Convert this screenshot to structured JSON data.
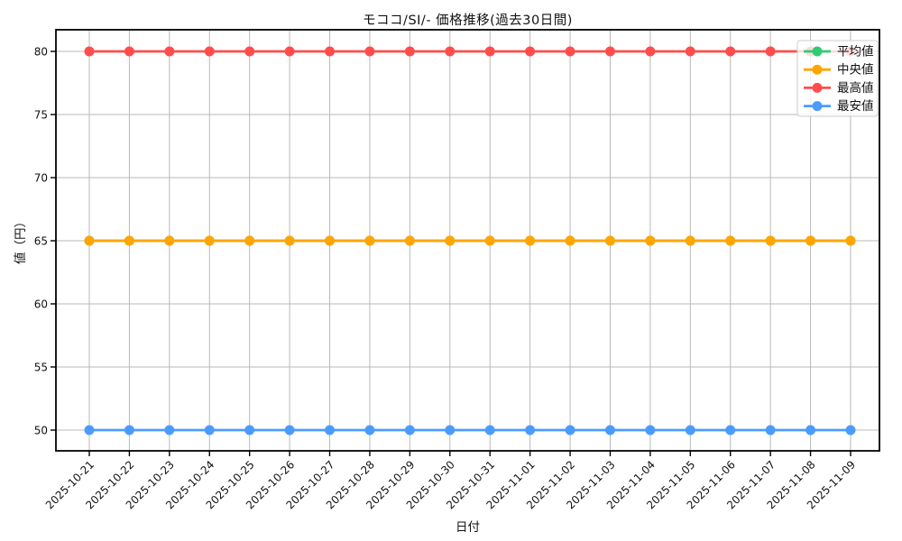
{
  "chart_data": {
    "type": "line",
    "title": "モココ/SI/- 価格推移(過去30日間)",
    "xlabel": "日付",
    "ylabel": "値（円）",
    "categories": [
      "2025-10-21",
      "2025-10-22",
      "2025-10-23",
      "2025-10-24",
      "2025-10-25",
      "2025-10-26",
      "2025-10-27",
      "2025-10-28",
      "2025-10-29",
      "2025-10-30",
      "2025-10-31",
      "2025-11-01",
      "2025-11-02",
      "2025-11-03",
      "2025-11-04",
      "2025-11-05",
      "2025-11-06",
      "2025-11-07",
      "2025-11-08",
      "2025-11-09"
    ],
    "series": [
      {
        "name": "平均値",
        "color": "#2ecc71",
        "values": [
          65,
          65,
          65,
          65,
          65,
          65,
          65,
          65,
          65,
          65,
          65,
          65,
          65,
          65,
          65,
          65,
          65,
          65,
          65,
          65
        ]
      },
      {
        "name": "中央値",
        "color": "#ffa502",
        "values": [
          65,
          65,
          65,
          65,
          65,
          65,
          65,
          65,
          65,
          65,
          65,
          65,
          65,
          65,
          65,
          65,
          65,
          65,
          65,
          65
        ]
      },
      {
        "name": "最高値",
        "color": "#ff4d4d",
        "values": [
          80,
          80,
          80,
          80,
          80,
          80,
          80,
          80,
          80,
          80,
          80,
          80,
          80,
          80,
          80,
          80,
          80,
          80,
          80,
          80
        ]
      },
      {
        "name": "最安値",
        "color": "#4b9bff",
        "values": [
          50,
          50,
          50,
          50,
          50,
          50,
          50,
          50,
          50,
          50,
          50,
          50,
          50,
          50,
          50,
          50,
          50,
          50,
          50,
          50
        ]
      }
    ],
    "yticks": [
      50,
      55,
      60,
      65,
      70,
      75,
      80
    ],
    "ylim": [
      48.4,
      81.7
    ],
    "grid": true,
    "legend_position": "upper right",
    "colors": {
      "grid": "#b9b9b9",
      "axis": "#000000",
      "tick_text": "#111111",
      "legend_border": "#cccccc"
    }
  }
}
